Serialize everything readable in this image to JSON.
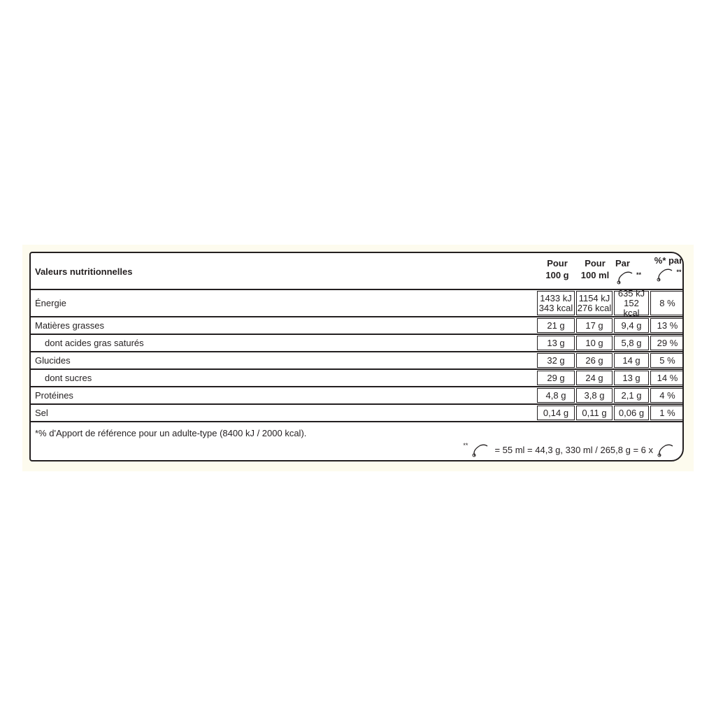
{
  "header": {
    "title": "Valeurs nutritionnelles",
    "col1": [
      "Pour",
      "100 g"
    ],
    "col2": [
      "Pour",
      "100 ml"
    ],
    "col3": "Par",
    "col4": "%* par",
    "portion_mark": "**",
    "portion_icon": "ice-cream-scoop-icon"
  },
  "rows": [
    {
      "label": "Énergie",
      "v": [
        "1433 kJ",
        "1154 kJ",
        "635 kJ"
      ],
      "v2": [
        "343 kcal",
        "276 kcal",
        "152 kcal"
      ],
      "pct": "8 %"
    },
    {
      "label": "Matières grasses",
      "v": [
        "21 g",
        "17 g",
        "9,4 g"
      ],
      "pct": "13 %"
    },
    {
      "label": "dont acides gras saturés",
      "v": [
        "13 g",
        "10 g",
        "5,8 g"
      ],
      "pct": "29 %"
    },
    {
      "label": "Glucides",
      "v": [
        "32 g",
        "26 g",
        "14 g"
      ],
      "pct": "5 %"
    },
    {
      "label": "dont sucres",
      "v": [
        "29 g",
        "24 g",
        "13 g"
      ],
      "pct": "14 %"
    },
    {
      "label": "Protéines",
      "v": [
        "4,8 g",
        "3,8 g",
        "2,1 g"
      ],
      "pct": "4 %"
    },
    {
      "label": "Sel",
      "v": [
        "0,14 g",
        "0,11 g",
        "0,06 g"
      ],
      "pct": "1 %"
    }
  ],
  "footer": {
    "reference": "*% d'Apport de référence pour un adulte-type (8400 kJ / 2000 kcal).",
    "mark": "**",
    "portion": "= 55 ml = 44,3 g, 330 ml / 265,8 g = 6 x"
  }
}
